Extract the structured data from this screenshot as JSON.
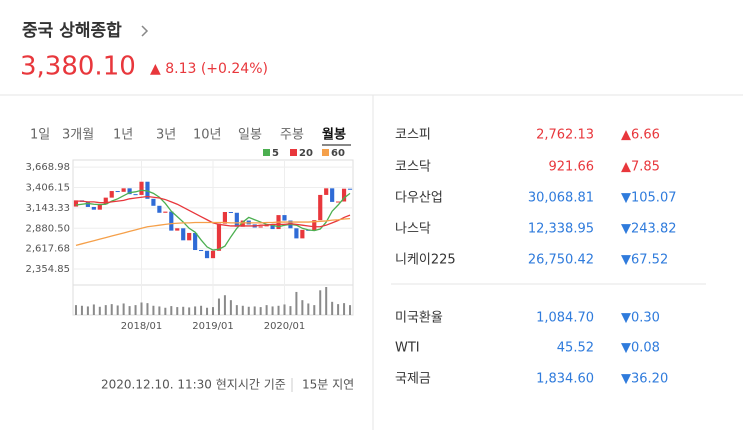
{
  "header": {
    "title": "중국 상해종합",
    "price": "3,380.10",
    "change": "▲ 8.13 (+0.24%)"
  },
  "tabs": [
    "1일",
    "3개월",
    "1년",
    "3년",
    "10년",
    "일봉",
    "주봉",
    "월봉"
  ],
  "selected_tab": 7,
  "chart_data": {
    "type": "candlestick",
    "categories": [
      null,
      null,
      null,
      null,
      null,
      null,
      null,
      null,
      null,
      null,
      null,
      "2018/01",
      null,
      null,
      null,
      null,
      null,
      null,
      null,
      null,
      null,
      null,
      null,
      "2019/01",
      null,
      null,
      null,
      null,
      null,
      null,
      null,
      null,
      null,
      null,
      null,
      "2020/01",
      null,
      null,
      null,
      null,
      null,
      null,
      null,
      null,
      null,
      null,
      null
    ],
    "open": [
      3160,
      3240,
      3220,
      3155,
      3120,
      3190,
      3275,
      3360,
      3350,
      3395,
      3320,
      3310,
      3480,
      3260,
      3170,
      3080,
      3095,
      2850,
      2880,
      2725,
      2820,
      2600,
      2590,
      2495,
      2590,
      2940,
      3090,
      3080,
      2900,
      2980,
      2930,
      2890,
      2905,
      2930,
      2870,
      3050,
      2980,
      2880,
      2750,
      2860,
      2850,
      2985,
      3310,
      3395,
      3220,
      3225,
      3390
    ],
    "close": [
      3240,
      3220,
      3155,
      3120,
      3190,
      3275,
      3360,
      3350,
      3395,
      3320,
      3310,
      3480,
      3260,
      3170,
      3080,
      3095,
      2850,
      2880,
      2725,
      2820,
      2600,
      2590,
      2495,
      2590,
      2940,
      3090,
      3080,
      2900,
      2980,
      2930,
      2890,
      2905,
      2930,
      2870,
      3050,
      2980,
      2880,
      2750,
      2860,
      2850,
      2985,
      3310,
      3395,
      3220,
      3225,
      3390,
      3380
    ],
    "up_color": "#e8373c",
    "down_color": "#2f6bd6",
    "series": [
      {
        "name": "5",
        "color": "#4caf50",
        "values": [
          3180,
          3190,
          3200,
          3190,
          3185,
          3190,
          3230,
          3260,
          3300,
          3340,
          3350,
          3370,
          3360,
          3330,
          3280,
          3200,
          3100,
          3030,
          2960,
          2880,
          2830,
          2730,
          2640,
          2600,
          2610,
          2650,
          2770,
          2880,
          2960,
          3020,
          2990,
          2960,
          2930,
          2920,
          2900,
          2920,
          2930,
          2920,
          2880,
          2860,
          2850,
          2870,
          2960,
          3100,
          3180,
          3270,
          3330
        ]
      },
      {
        "name": "20",
        "color": "#e8373c",
        "values": [
          3230,
          3230,
          3220,
          3220,
          3210,
          3210,
          3220,
          3230,
          3240,
          3260,
          3270,
          3280,
          3290,
          3280,
          3270,
          3250,
          3220,
          3190,
          3150,
          3110,
          3070,
          3030,
          2990,
          2950,
          2930,
          2920,
          2910,
          2910,
          2910,
          2910,
          2910,
          2920,
          2920,
          2930,
          2930,
          2930,
          2940,
          2930,
          2920,
          2910,
          2900,
          2900,
          2920,
          2950,
          2980,
          3020,
          3050
        ]
      },
      {
        "name": "60",
        "color": "#f5a04a",
        "values": [
          2660,
          2680,
          2700,
          2720,
          2740,
          2760,
          2780,
          2800,
          2820,
          2840,
          2860,
          2880,
          2900,
          2910,
          2920,
          2930,
          2940,
          2945,
          2950,
          2950,
          2955,
          2955,
          2955,
          2955,
          2955,
          2955,
          2950,
          2950,
          2950,
          2950,
          2950,
          2950,
          2955,
          2955,
          2960,
          2960,
          2960,
          2960,
          2960,
          2960,
          2965,
          2970,
          2975,
          2985,
          2990,
          3000,
          3005
        ]
      }
    ],
    "volume": [
      30,
      28,
      26,
      32,
      25,
      30,
      33,
      29,
      35,
      27,
      30,
      38,
      36,
      28,
      26,
      22,
      27,
      24,
      25,
      23,
      26,
      28,
      22,
      24,
      50,
      60,
      45,
      30,
      28,
      25,
      26,
      24,
      30,
      26,
      28,
      32,
      27,
      70,
      45,
      35,
      30,
      75,
      85,
      40,
      33,
      36,
      30
    ],
    "volume_color": "#8a8a8a",
    "ylim": [
      2175,
      3760
    ],
    "yticks": [
      {
        "value": 3668.98,
        "label": "3,668.98"
      },
      {
        "value": 3406.15,
        "label": "3,406.15"
      },
      {
        "value": 3143.33,
        "label": "3,143.33"
      },
      {
        "value": 2880.5,
        "label": "2,880.50"
      },
      {
        "value": 2617.68,
        "label": "2,617.68"
      },
      {
        "value": 2354.85,
        "label": "2,354.85"
      }
    ],
    "grid": true
  },
  "footer": {
    "time": "2020.12.10. 11:30 현지시간 기준",
    "delay": "15분 지연"
  },
  "indices": [
    {
      "name": "코스피",
      "value": "2,762.13",
      "change": "▲6.66",
      "direction": "up"
    },
    {
      "name": "코스닥",
      "value": "921.66",
      "change": "▲7.85",
      "direction": "up"
    },
    {
      "name": "다우산업",
      "value": "30,068.81",
      "change": "▼105.07",
      "direction": "down"
    },
    {
      "name": "나스닥",
      "value": "12,338.95",
      "change": "▼243.82",
      "direction": "down"
    },
    {
      "name": "니케이225",
      "value": "26,750.42",
      "change": "▼67.52",
      "direction": "down"
    }
  ],
  "markets": [
    {
      "name": "미국환율",
      "value": "1,084.70",
      "change": "▼0.30",
      "direction": "down"
    },
    {
      "name": "WTI",
      "value": "45.52",
      "change": "▼0.08",
      "direction": "down"
    },
    {
      "name": "국제금",
      "value": "1,834.60",
      "change": "▼36.20",
      "direction": "down"
    }
  ]
}
